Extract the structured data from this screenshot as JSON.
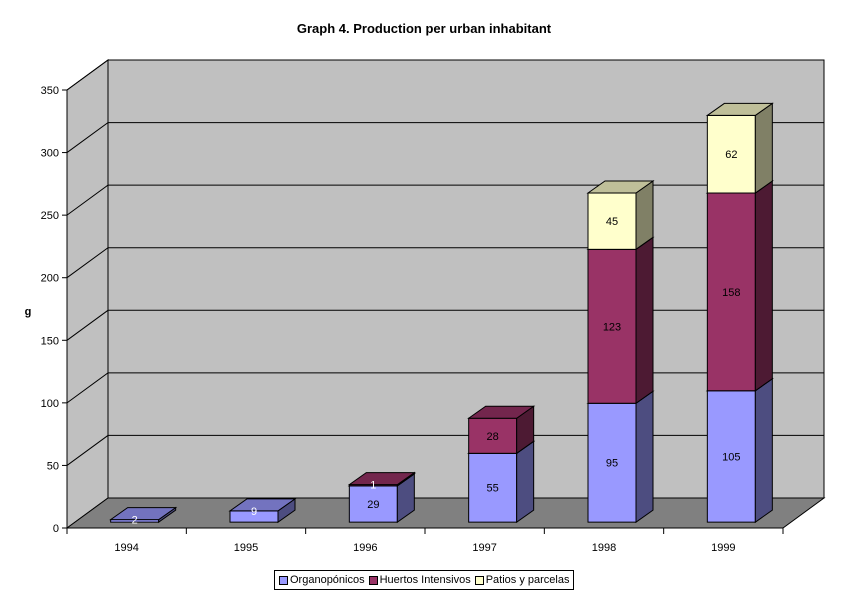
{
  "chart_data": {
    "type": "bar",
    "stacked": true,
    "three_d": true,
    "title": "Graph 4. Production per urban inhabitant",
    "xlabel": "",
    "ylabel": "g",
    "ylim": [
      0,
      350
    ],
    "yticks": [
      0,
      50,
      100,
      150,
      200,
      250,
      300,
      350
    ],
    "grid": true,
    "legend_position": "bottom",
    "categories": [
      "1994",
      "1995",
      "1996",
      "1997",
      "1998",
      "1999"
    ],
    "series": [
      {
        "name": "Organopónicos",
        "color": "#9999ff",
        "values": [
          2,
          9,
          29,
          55,
          95,
          105
        ]
      },
      {
        "name": "Huertos Intensivos",
        "color": "#993366",
        "values": [
          0,
          0,
          1,
          28,
          123,
          158
        ]
      },
      {
        "name": "Patios y parcelas",
        "color": "#ffffcc",
        "values": [
          0,
          0,
          0,
          0,
          45,
          62
        ]
      }
    ],
    "data_labels": [
      [
        "2",
        "9",
        "29",
        "55",
        "95",
        "105"
      ],
      [
        "",
        "",
        "1",
        "28",
        "123",
        "158"
      ],
      [
        "",
        "",
        "",
        "",
        "45",
        "62"
      ]
    ],
    "colors": {
      "wall": "#c0c0c0",
      "floor": "#808080",
      "gridline": "#000000"
    }
  }
}
